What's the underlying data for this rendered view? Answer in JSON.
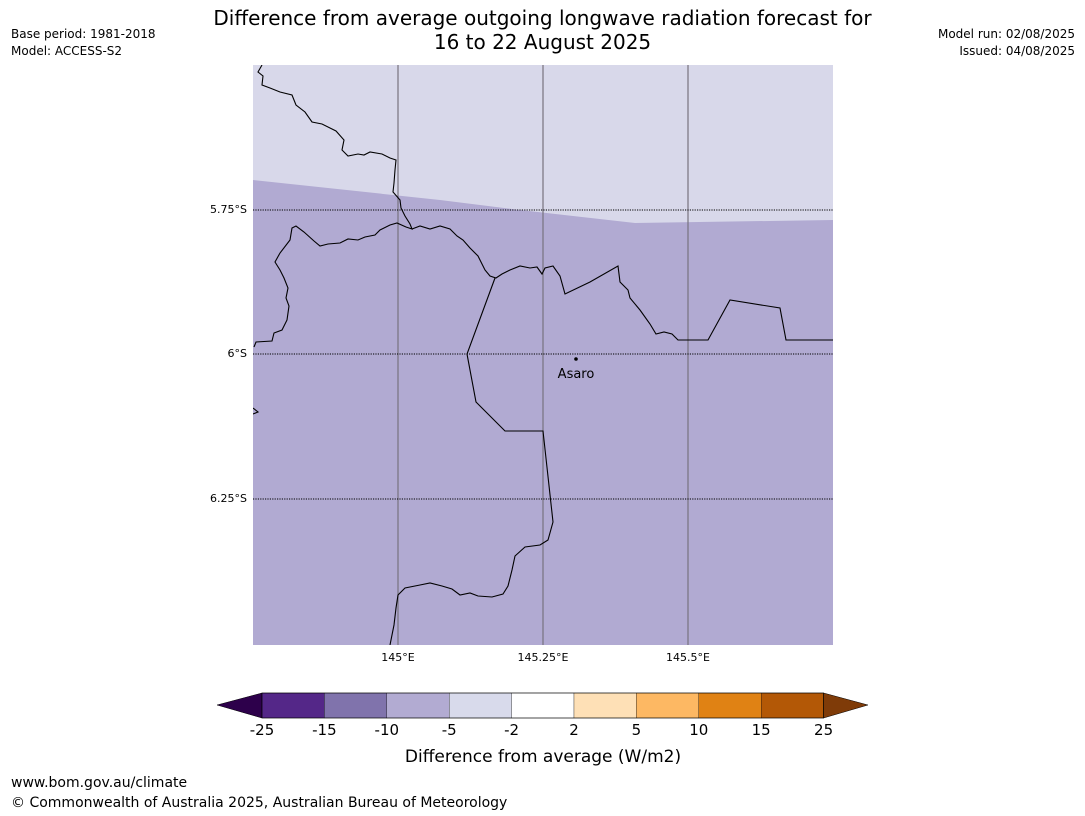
{
  "header": {
    "title_line1": "Difference from average outgoing longwave radiation forecast for",
    "title_line2": "16 to 22 August 2025",
    "base_period": "Base period: 1981-2018",
    "model": "Model: ACCESS-S2",
    "model_run": "Model run: 02/08/2025",
    "issued": "Issued: 04/08/2025"
  },
  "map": {
    "lat_labels": [
      "5.75°S",
      "6°S",
      "6.25°S"
    ],
    "lon_labels": [
      "145°E",
      "145.25°E",
      "145.5°E"
    ],
    "place": "Asaro",
    "fill_colors": {
      "upper_band": "#d8d8ea",
      "lower_band": "#b1aad2"
    }
  },
  "colorbar": {
    "label": "Difference from average (W/m2)",
    "ticks": [
      "-25",
      "-15",
      "-10",
      "-5",
      "-2",
      "2",
      "5",
      "10",
      "15",
      "25"
    ],
    "colors": [
      "#2d004b",
      "#542788",
      "#8073ac",
      "#b2abd2",
      "#d8daeb",
      "#ffffff",
      "#fee0b6",
      "#fdb863",
      "#e08214",
      "#b35806",
      "#7f3b08"
    ]
  },
  "footer": {
    "url": "www.bom.gov.au/climate",
    "copyright": "© Commonwealth of Australia 2025, Australian Bureau of Meteorology"
  }
}
